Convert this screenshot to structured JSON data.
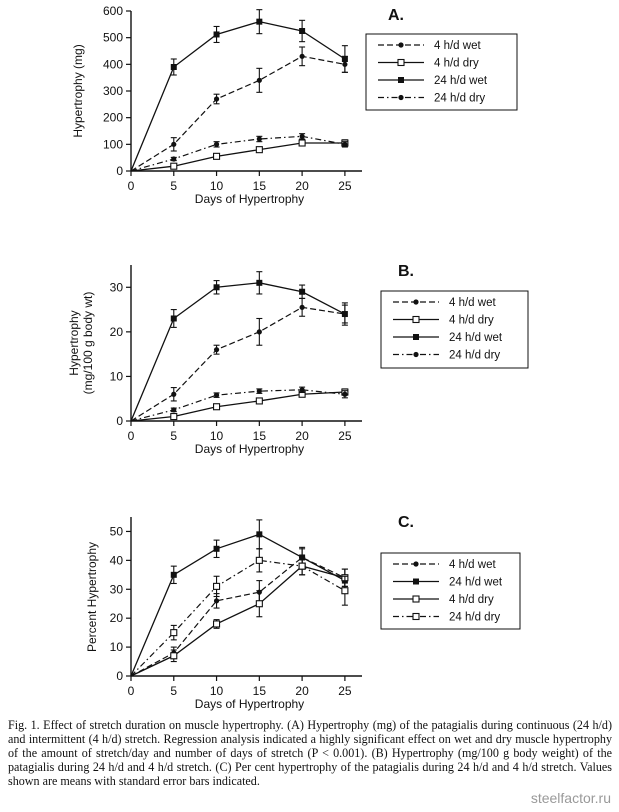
{
  "chart_data": [
    {
      "type": "line",
      "panel_label": "A.",
      "ylabel": "Hypertrophy (mg)",
      "xlabel": "Days of Hypertrophy",
      "x": [
        0,
        5,
        10,
        15,
        20,
        25
      ],
      "xlim": [
        0,
        27
      ],
      "ylim": [
        0,
        600
      ],
      "yticks": [
        0,
        100,
        200,
        300,
        400,
        500,
        600
      ],
      "xticks": [
        0,
        5,
        10,
        15,
        20,
        25
      ],
      "grid": false,
      "legend_position": "right",
      "series": [
        {
          "name": "4 h/d wet",
          "values": [
            0,
            100,
            270,
            340,
            430,
            400
          ],
          "errors": [
            0,
            25,
            18,
            45,
            35,
            30
          ],
          "style": "dash",
          "marker": "dot-filled"
        },
        {
          "name": "4 h/d dry",
          "values": [
            0,
            18,
            55,
            80,
            105,
            105
          ],
          "errors": [
            0,
            4,
            6,
            10,
            10,
            12
          ],
          "style": "solid",
          "marker": "square-open"
        },
        {
          "name": "24 h/d wet",
          "values": [
            0,
            390,
            512,
            560,
            525,
            420
          ],
          "errors": [
            0,
            30,
            30,
            45,
            40,
            50
          ],
          "style": "solid",
          "marker": "square-filled"
        },
        {
          "name": "24 h/d dry",
          "values": [
            0,
            45,
            100,
            120,
            130,
            100
          ],
          "errors": [
            0,
            6,
            10,
            10,
            10,
            10
          ],
          "style": "dashdot",
          "marker": "dot-filled"
        }
      ]
    },
    {
      "type": "line",
      "panel_label": "B.",
      "ylabel": "Hypertrophy\n(mg/100 g body wt)",
      "xlabel": "Days of Hypertrophy",
      "x": [
        0,
        5,
        10,
        15,
        20,
        25
      ],
      "xlim": [
        0,
        27
      ],
      "ylim": [
        0,
        35
      ],
      "yticks": [
        0,
        10,
        20,
        30
      ],
      "xticks": [
        0,
        5,
        10,
        15,
        20,
        25
      ],
      "grid": false,
      "legend_position": "right",
      "series": [
        {
          "name": "4 h/d wet",
          "values": [
            0,
            6,
            16,
            20,
            25.5,
            24
          ],
          "errors": [
            0,
            1.5,
            1,
            3,
            2,
            2
          ],
          "style": "dash",
          "marker": "dot-filled"
        },
        {
          "name": "4 h/d dry",
          "values": [
            0,
            1,
            3.2,
            4.5,
            6,
            6.5
          ],
          "errors": [
            0,
            0.3,
            0.4,
            0.5,
            0.6,
            0.7
          ],
          "style": "solid",
          "marker": "square-open"
        },
        {
          "name": "24 h/d wet",
          "values": [
            0,
            23,
            30,
            31,
            29,
            24
          ],
          "errors": [
            0,
            2,
            1.5,
            2.5,
            1.5,
            2.5
          ],
          "style": "solid",
          "marker": "square-filled"
        },
        {
          "name": "24 h/d dry",
          "values": [
            0,
            2.5,
            5.8,
            6.7,
            7,
            6
          ],
          "errors": [
            0,
            0.4,
            0.5,
            0.5,
            0.6,
            0.8
          ],
          "style": "dashdot",
          "marker": "dot-filled"
        }
      ]
    },
    {
      "type": "line",
      "panel_label": "C.",
      "ylabel": "Percent Hypertrophy",
      "xlabel": "Days of Hypertrophy",
      "x": [
        0,
        5,
        10,
        15,
        20,
        25
      ],
      "xlim": [
        0,
        27
      ],
      "ylim": [
        0,
        55
      ],
      "yticks": [
        0,
        10,
        20,
        30,
        40,
        50
      ],
      "xticks": [
        0,
        5,
        10,
        15,
        20,
        25
      ],
      "grid": false,
      "legend_position": "right",
      "series": [
        {
          "name": "4 h/d wet",
          "values": [
            0,
            8,
            26,
            29,
            41,
            34
          ],
          "errors": [
            0,
            2,
            2.5,
            4,
            3,
            3
          ],
          "style": "dash",
          "marker": "dot-filled"
        },
        {
          "name": "24  h/d wet",
          "values": [
            0,
            35,
            44,
            49,
            41,
            33
          ],
          "errors": [
            0,
            3,
            3,
            5,
            3.5,
            4
          ],
          "style": "solid",
          "marker": "square-filled"
        },
        {
          "name": "4 h/d dry",
          "values": [
            0,
            7,
            18,
            25,
            38,
            34
          ],
          "errors": [
            0,
            2,
            1.5,
            4.5,
            3,
            3
          ],
          "style": "solid",
          "marker": "square-open"
        },
        {
          "name": "24 h/d dry",
          "values": [
            0,
            15,
            31,
            40,
            38,
            29.5
          ],
          "errors": [
            0,
            2.5,
            3.5,
            4,
            3,
            5
          ],
          "style": "dashdot",
          "marker": "square-open"
        }
      ]
    }
  ],
  "caption": "Fig. 1. Effect of stretch duration on muscle hypertrophy. (A) Hypertrophy (mg) of the patagialis during continuous (24 h/d) and intermittent (4 h/d) stretch. Regression analysis indicated a highly significant effect on wet and dry muscle hypertrophy of the amount of stretch/day and number of days of stretch (P < 0.001). (B) Hypertrophy (mg/100 g body weight) of the patagialis during 24 h/d and 4 h/d stretch. (C) Per cent hypertrophy of the patagialis during 24 h/d and 4 h/d stretch. Values shown are means with standard error bars indicated.",
  "watermark": "steelfactor.ru"
}
